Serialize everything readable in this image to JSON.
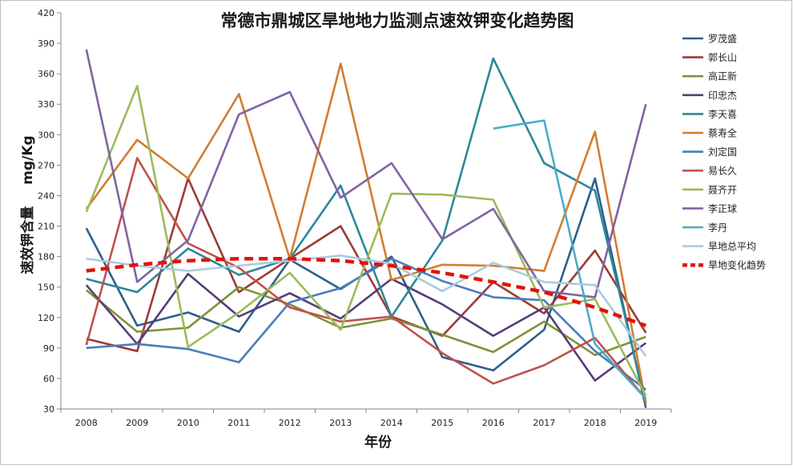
{
  "chart_data": {
    "type": "line",
    "title": "常德市鼎城区旱地地力监测点速效钾变化趋势图",
    "xlabel": "年份",
    "ylabel": "速效钾含量",
    "yunit": "mg/Kg",
    "x": [
      "2008",
      "2009",
      "2010",
      "2011",
      "2012",
      "2013",
      "2014",
      "2015",
      "2016",
      "2017",
      "2018",
      "2019"
    ],
    "ylim": [
      30,
      420
    ],
    "yticks": [
      30,
      60,
      90,
      120,
      150,
      180,
      210,
      240,
      270,
      300,
      330,
      360,
      390,
      420
    ],
    "grid": false,
    "legend_position": "right",
    "series": [
      {
        "name": "罗茂盛",
        "color": "#2e5f8a",
        "dashed": false,
        "values": [
          208,
          112,
          125,
          106,
          177,
          148,
          180,
          81,
          68,
          108,
          257,
          31
        ]
      },
      {
        "name": "郭长山",
        "color": "#9c3a36",
        "dashed": false,
        "values": [
          99,
          87,
          257,
          145,
          178,
          210,
          121,
          102,
          155,
          124,
          186,
          105
        ]
      },
      {
        "name": "高正新",
        "color": "#7e9138",
        "dashed": false,
        "values": [
          147,
          106,
          110,
          150,
          133,
          110,
          119,
          103,
          86,
          116,
          83,
          101
        ]
      },
      {
        "name": "印忠杰",
        "color": "#573c78",
        "dashed": false,
        "values": [
          152,
          94,
          163,
          121,
          144,
          119,
          158,
          133,
          102,
          130,
          58,
          95
        ]
      },
      {
        "name": "李天喜",
        "color": "#2d8799",
        "dashed": false,
        "values": [
          158,
          145,
          188,
          162,
          178,
          250,
          121,
          196,
          375,
          272,
          245,
          35
        ]
      },
      {
        "name": "蔡寿全",
        "color": "#d27d31",
        "dashed": false,
        "values": [
          227,
          295,
          257,
          340,
          178,
          370,
          157,
          172,
          171,
          166,
          303,
          36
        ]
      },
      {
        "name": "刘定国",
        "color": "#4a7cbd",
        "dashed": false,
        "values": [
          90,
          94,
          89,
          76,
          135,
          149,
          178,
          156,
          140,
          137,
          87,
          49
        ]
      },
      {
        "name": "易长久",
        "color": "#c0504d",
        "dashed": false,
        "values": [
          93,
          277,
          193,
          169,
          130,
          116,
          121,
          85,
          55,
          73,
          100,
          40
        ]
      },
      {
        "name": "聂齐开",
        "color": "#9bbb59",
        "dashed": false,
        "values": [
          224,
          348,
          91,
          125,
          164,
          108,
          242,
          241,
          236,
          130,
          138,
          43
        ]
      },
      {
        "name": "李正球",
        "color": "#8064a2",
        "dashed": false,
        "values": [
          384,
          155,
          196,
          320,
          342,
          238,
          272,
          197,
          227,
          146,
          140,
          330
        ]
      },
      {
        "name": "李丹",
        "color": "#4bacc6",
        "dashed": false,
        "values": [
          null,
          null,
          null,
          null,
          null,
          null,
          null,
          null,
          306,
          314,
          94,
          40
        ]
      },
      {
        "name": "旱地总平均",
        "color": "#a8cbe0",
        "dashed": false,
        "values": [
          178,
          171,
          166,
          171,
          176,
          181,
          173,
          146,
          174,
          155,
          152,
          82
        ]
      },
      {
        "name": "旱地变化趋势",
        "color": "#e3120b",
        "dashed": true,
        "values": [
          166,
          172,
          176,
          178,
          178,
          176,
          171,
          164,
          155,
          145,
          130,
          112
        ]
      }
    ]
  }
}
